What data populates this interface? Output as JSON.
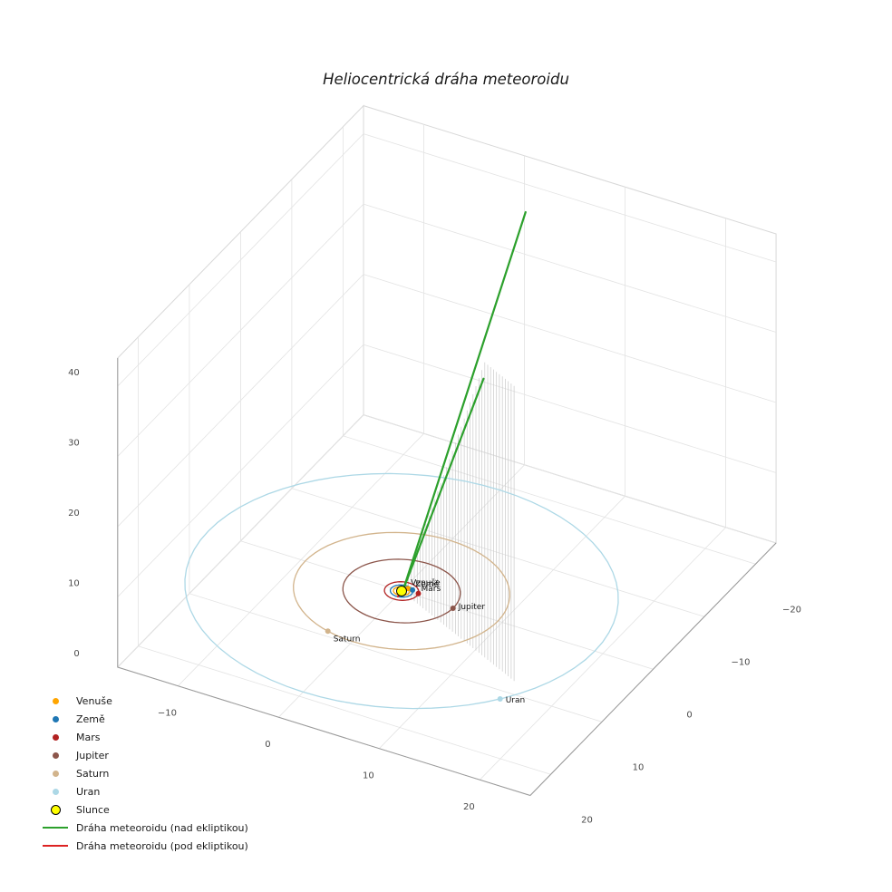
{
  "chart_data": {
    "type": "scatter",
    "subtype": "3d-trajectory",
    "title": "Heliocentrická dráha meteoroidu",
    "background": "#ffffff",
    "axes": {
      "x": {
        "range": [
          -16,
          25
        ],
        "tick_values": [
          -10,
          0,
          10,
          20
        ],
        "tick_labels": [
          "−10",
          "0",
          "10",
          "20"
        ]
      },
      "y": {
        "range": [
          -24,
          24
        ],
        "tick_values": [
          -20,
          -10,
          0,
          10,
          20
        ],
        "tick_labels": [
          "−20",
          "−10",
          "0",
          "10",
          "20"
        ]
      },
      "z": {
        "range": [
          0,
          44
        ],
        "tick_values": [
          0,
          10,
          20,
          30,
          40
        ],
        "tick_labels": [
          "0",
          "10",
          "20",
          "30",
          "40"
        ]
      }
    },
    "grid": {
      "on": true,
      "color": "#e3e3e3",
      "edge_color": "#d8d8d8",
      "axis_line_color": "#9a9a9a"
    },
    "sun": {
      "label": "Slunce",
      "color": "#ffff00",
      "edge_color": "#000000",
      "position": [
        0,
        0,
        0
      ],
      "marker_size": 5.5
    },
    "planets": [
      {
        "name": "Venuše",
        "orbit_radius_au": 0.72,
        "angle_deg": -65,
        "color": "#ffa500",
        "marker_size": 3,
        "label_offset": [
          3,
          -4
        ]
      },
      {
        "name": "Země",
        "orbit_radius_au": 1.0,
        "angle_deg": -40,
        "color": "#1f77b4",
        "marker_size": 3,
        "label_offset": [
          3,
          -4
        ]
      },
      {
        "name": "Mars",
        "orbit_radius_au": 1.52,
        "angle_deg": -15,
        "color": "#b22222",
        "marker_size": 3,
        "label_offset": [
          3,
          -3
        ]
      },
      {
        "name": "Jupiter",
        "orbit_radius_au": 5.2,
        "angle_deg": 2,
        "color": "#8c564b",
        "marker_size": 3,
        "label_offset": [
          6,
          1
        ]
      },
      {
        "name": "Saturn",
        "orbit_radius_au": 9.58,
        "angle_deg": 106,
        "color": "#d2b48c",
        "marker_size": 3,
        "label_offset": [
          6,
          11
        ]
      },
      {
        "name": "Uran",
        "orbit_radius_au": 19.2,
        "angle_deg": 36,
        "color": "#add8e6",
        "marker_size": 3,
        "label_offset": [
          6,
          4
        ]
      }
    ],
    "trajectory_above": {
      "label": "Dráha meteoroidu (nad ekliptikou)",
      "color": "#2ca02c",
      "line_width": 2.2,
      "branches": [
        [
          [
            0.2,
            0.1,
            0.3
          ],
          [
            16.8,
            8.8,
            68
          ]
        ],
        [
          [
            0.2,
            0.1,
            0.3
          ],
          [
            11.1,
            5.8,
            39.5
          ]
        ]
      ]
    },
    "trajectory_below": {
      "label": "Dráha meteoroidu (pod ekliptikou)",
      "color": "#dd2222",
      "line_width": 2,
      "branches": [
        [
          [
            0.5,
            0.26,
            0.6
          ],
          [
            -0.5,
            -0.26,
            -1.2
          ]
        ]
      ]
    },
    "stems": {
      "direction": [
        0.885,
        0.465
      ],
      "s_start": 0.6,
      "s_end": 17.4,
      "s_step": 0.45,
      "height_slope": 3.3,
      "height_cap": 42,
      "color": "#c9c9c9"
    },
    "legend_position": "lower-left"
  }
}
